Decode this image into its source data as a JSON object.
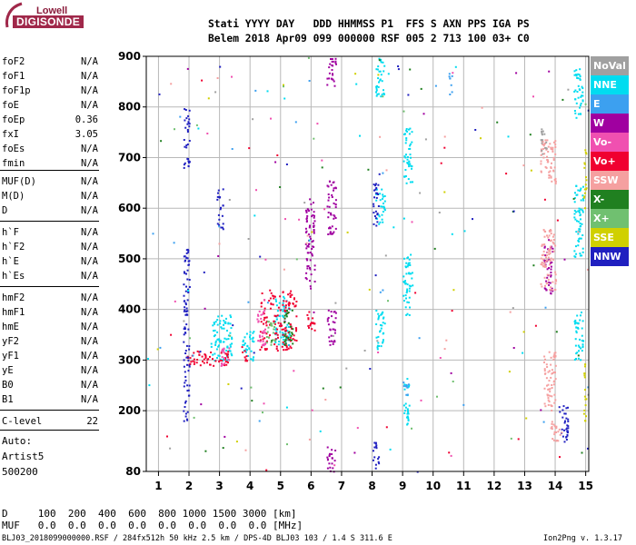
{
  "logo": {
    "top": "Lowell",
    "bottom": "DIGISONDE"
  },
  "header": {
    "line1": "Stati YYYY DAY   DDD HHMMSS P1  FFS S AXN PPS IGA PS",
    "line2": "Belem 2018 Apr09 099 000000 RSF 005 2 713 100 03+ C0"
  },
  "params": [
    {
      "group": 1,
      "name": "foF2",
      "value": "N/A"
    },
    {
      "group": 1,
      "name": "foF1",
      "value": "N/A"
    },
    {
      "group": 1,
      "name": "foF1p",
      "value": "N/A"
    },
    {
      "group": 1,
      "name": "foE",
      "value": "N/A"
    },
    {
      "group": 1,
      "name": "foEp",
      "value": "0.36"
    },
    {
      "group": 1,
      "name": "fxI",
      "value": "3.05"
    },
    {
      "group": 1,
      "name": "foEs",
      "value": "N/A"
    },
    {
      "group": 1,
      "name": "fmin",
      "value": "N/A"
    },
    {
      "group": 2,
      "name": "MUF(D)",
      "value": "N/A"
    },
    {
      "group": 2,
      "name": "M(D)",
      "value": "N/A"
    },
    {
      "group": 2,
      "name": "D",
      "value": "N/A"
    },
    {
      "group": 3,
      "name": "h`F",
      "value": "N/A"
    },
    {
      "group": 3,
      "name": "h`F2",
      "value": "N/A"
    },
    {
      "group": 3,
      "name": "h`E",
      "value": "N/A"
    },
    {
      "group": 3,
      "name": "h`Es",
      "value": "N/A"
    },
    {
      "group": 4,
      "name": "hmF2",
      "value": "N/A"
    },
    {
      "group": 4,
      "name": "hmF1",
      "value": "N/A"
    },
    {
      "group": 4,
      "name": "hmE",
      "value": "N/A"
    },
    {
      "group": 4,
      "name": "yF2",
      "value": "N/A"
    },
    {
      "group": 4,
      "name": "yF1",
      "value": "N/A"
    },
    {
      "group": 4,
      "name": "yE",
      "value": "N/A"
    },
    {
      "group": 4,
      "name": "B0",
      "value": "N/A"
    },
    {
      "group": 4,
      "name": "B1",
      "value": "N/A"
    },
    {
      "group": 5,
      "name": "C-level",
      "value": "22"
    }
  ],
  "auto": {
    "line1": "Auto:",
    "line2": "Artist5",
    "line3": "500200"
  },
  "legend": [
    {
      "label": "NoVal",
      "color": "#a0a0a0"
    },
    {
      "label": "NNE",
      "color": "#00dcf0"
    },
    {
      "label": "E",
      "color": "#3ca0f0"
    },
    {
      "label": "W",
      "color": "#a000a0"
    },
    {
      "label": "Vo-",
      "color": "#f050b0"
    },
    {
      "label": "Vo+",
      "color": "#f00030"
    },
    {
      "label": "SSW",
      "color": "#f5a0a0"
    },
    {
      "label": "X-",
      "color": "#208020"
    },
    {
      "label": "X+",
      "color": "#70c070"
    },
    {
      "label": "SSE",
      "color": "#d0d000"
    },
    {
      "label": "NNW",
      "color": "#2020c0"
    }
  ],
  "bottom": {
    "d_line": "D     100  200  400  600  800 1000 1500 3000 [km]",
    "muf_line": "MUF   0.0  0.0  0.0  0.0  0.0  0.0  0.0  0.0 [MHz]"
  },
  "footer": {
    "left": "BLJ03_2018099000000.RSF / 284fx512h 50 kHz 2.5 km / DPS-4D BLJ03 103 / 1.4 S 311.6 E",
    "right": "Ion2Png v. 1.3.17"
  },
  "chart_data": {
    "type": "scatter",
    "title": "",
    "xlabel": "",
    "ylabel": "",
    "xlim": [
      0.6,
      15.1
    ],
    "ylim": [
      80,
      900
    ],
    "x_ticks": [
      "1",
      "2",
      "3",
      "4",
      "5",
      "6",
      "7",
      "8",
      "9",
      "10",
      "11",
      "12",
      "13",
      "14",
      "15"
    ],
    "y_ticks": [
      "80",
      "200",
      "300",
      "400",
      "500",
      "600",
      "700",
      "800",
      "900"
    ],
    "grid": true,
    "legend_position": "right",
    "clusters": [
      {
        "name": "NNE",
        "x": [
          9.0,
          9.2
        ],
        "y": [
          165,
          265
        ],
        "color": "#00dcf0"
      },
      {
        "name": "NNE",
        "x": [
          9.0,
          9.3
        ],
        "y": [
          390,
          510
        ],
        "color": "#00dcf0"
      },
      {
        "name": "NNE",
        "x": [
          9.0,
          9.3
        ],
        "y": [
          650,
          760
        ],
        "color": "#00dcf0"
      },
      {
        "name": "NNE",
        "x": [
          8.1,
          8.4
        ],
        "y": [
          320,
          400
        ],
        "color": "#00dcf0"
      },
      {
        "name": "NNE",
        "x": [
          8.1,
          8.4
        ],
        "y": [
          570,
          640
        ],
        "color": "#00dcf0"
      },
      {
        "name": "NNE",
        "x": [
          8.1,
          8.4
        ],
        "y": [
          820,
          900
        ],
        "color": "#00dcf0"
      },
      {
        "name": "NNE",
        "x": [
          2.7,
          3.4
        ],
        "y": [
          300,
          390
        ],
        "color": "#00dcf0"
      },
      {
        "name": "NNE",
        "x": [
          3.7,
          4.1
        ],
        "y": [
          300,
          360
        ],
        "color": "#00dcf0"
      },
      {
        "name": "NNE",
        "x": [
          4.8,
          5.3
        ],
        "y": [
          330,
          430
        ],
        "color": "#00dcf0"
      },
      {
        "name": "NNE",
        "x": [
          14.6,
          14.9
        ],
        "y": [
          300,
          400
        ],
        "color": "#00dcf0"
      },
      {
        "name": "NNE",
        "x": [
          14.6,
          14.9
        ],
        "y": [
          500,
          650
        ],
        "color": "#00dcf0"
      },
      {
        "name": "NNE",
        "x": [
          14.6,
          14.9
        ],
        "y": [
          780,
          880
        ],
        "color": "#00dcf0"
      },
      {
        "name": "Vo+",
        "x": [
          1.9,
          3.3
        ],
        "y": [
          290,
          320
        ],
        "color": "#f00030"
      },
      {
        "name": "Vo+",
        "x": [
          3.7,
          3.9
        ],
        "y": [
          300,
          330
        ],
        "color": "#f00030"
      },
      {
        "name": "Vo+",
        "x": [
          4.3,
          5.5
        ],
        "y": [
          320,
          440
        ],
        "color": "#f00030"
      },
      {
        "name": "Vo+",
        "x": [
          5.8,
          6.1
        ],
        "y": [
          360,
          400
        ],
        "color": "#f00030"
      },
      {
        "name": "Vo-",
        "x": [
          3.0,
          3.3
        ],
        "y": [
          290,
          330
        ],
        "color": "#f050b0"
      },
      {
        "name": "Vo-",
        "x": [
          4.2,
          4.5
        ],
        "y": [
          330,
          400
        ],
        "color": "#f050b0"
      },
      {
        "name": "W",
        "x": [
          6.5,
          6.8
        ],
        "y": [
          330,
          400
        ],
        "color": "#a000a0"
      },
      {
        "name": "W",
        "x": [
          6.5,
          6.8
        ],
        "y": [
          550,
          660
        ],
        "color": "#a000a0"
      },
      {
        "name": "W",
        "x": [
          6.5,
          6.8
        ],
        "y": [
          80,
          130
        ],
        "color": "#a000a0"
      },
      {
        "name": "W",
        "x": [
          6.5,
          6.8
        ],
        "y": [
          840,
          900
        ],
        "color": "#a000a0"
      },
      {
        "name": "W",
        "x": [
          5.8,
          6.1
        ],
        "y": [
          440,
          620
        ],
        "color": "#a000a0"
      },
      {
        "name": "W",
        "x": [
          13.6,
          13.9
        ],
        "y": [
          430,
          540
        ],
        "color": "#a000a0"
      },
      {
        "name": "NNW",
        "x": [
          1.8,
          2.0
        ],
        "y": [
          180,
          520
        ],
        "color": "#2020c0"
      },
      {
        "name": "NNW",
        "x": [
          1.8,
          2.0
        ],
        "y": [
          680,
          800
        ],
        "color": "#2020c0"
      },
      {
        "name": "NNW",
        "x": [
          2.9,
          3.1
        ],
        "y": [
          560,
          640
        ],
        "color": "#2020c0"
      },
      {
        "name": "NNW",
        "x": [
          8.0,
          8.2
        ],
        "y": [
          560,
          650
        ],
        "color": "#2020c0"
      },
      {
        "name": "NNW",
        "x": [
          8.0,
          8.2
        ],
        "y": [
          80,
          140
        ],
        "color": "#2020c0"
      },
      {
        "name": "NNW",
        "x": [
          14.1,
          14.4
        ],
        "y": [
          140,
          220
        ],
        "color": "#2020c0"
      },
      {
        "name": "SSW",
        "x": [
          13.6,
          14.0
        ],
        "y": [
          200,
          320
        ],
        "color": "#f5a0a0"
      },
      {
        "name": "SSW",
        "x": [
          13.5,
          14.0
        ],
        "y": [
          650,
          740
        ],
        "color": "#f5a0a0"
      },
      {
        "name": "SSW",
        "x": [
          13.5,
          14.0
        ],
        "y": [
          440,
          560
        ],
        "color": "#f5a0a0"
      },
      {
        "name": "SSW",
        "x": [
          13.8,
          14.2
        ],
        "y": [
          140,
          180
        ],
        "color": "#f5a0a0"
      },
      {
        "name": "SSE",
        "x": [
          14.9,
          15.0
        ],
        "y": [
          180,
          300
        ],
        "color": "#d0d000"
      },
      {
        "name": "SSE",
        "x": [
          14.9,
          15.0
        ],
        "y": [
          600,
          720
        ],
        "color": "#d0d000"
      },
      {
        "name": "E",
        "x": [
          9.0,
          9.2
        ],
        "y": [
          230,
          260
        ],
        "color": "#3ca0f0"
      },
      {
        "name": "E",
        "x": [
          10.5,
          10.6
        ],
        "y": [
          820,
          870
        ],
        "color": "#3ca0f0"
      },
      {
        "name": "X-",
        "x": [
          5.1,
          5.4
        ],
        "y": [
          330,
          400
        ],
        "color": "#208020"
      },
      {
        "name": "X+",
        "x": [
          4.5,
          4.8
        ],
        "y": [
          330,
          380
        ],
        "color": "#70c070"
      },
      {
        "name": "NoVal",
        "x": [
          13.5,
          13.7
        ],
        "y": [
          700,
          760
        ],
        "color": "#a0a0a0"
      }
    ]
  }
}
